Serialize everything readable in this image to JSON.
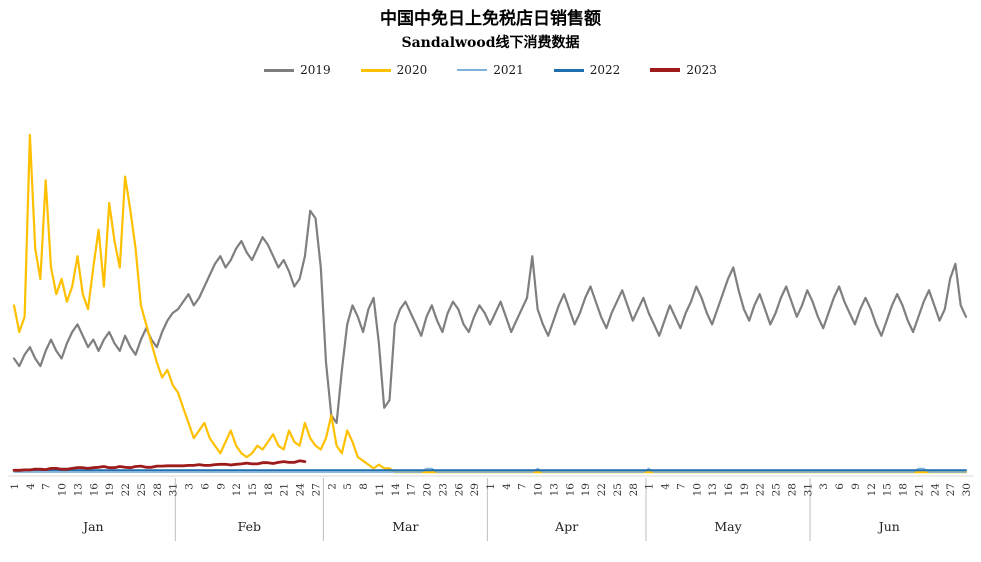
{
  "header": {
    "title": "中国中免日上免税店日销售额",
    "subtitle": "Sandalwood线下消费数据"
  },
  "legend": [
    {
      "label": "2019",
      "color": "#7F7F7F",
      "thickness": 3
    },
    {
      "label": "2020",
      "color": "#FFC000",
      "thickness": 3
    },
    {
      "label": "2021",
      "color": "#7EB1DC",
      "thickness": 2
    },
    {
      "label": "2022",
      "color": "#1F6FAF",
      "thickness": 3
    },
    {
      "label": "2023",
      "color": "#9E1B1B",
      "thickness": 4
    }
  ],
  "chart_data": {
    "type": "line",
    "title": "中国中免日上免税店日销售额",
    "subtitle": "Sandalwood线下消费数据",
    "x_unit": "day of year (Jan 1 = 1, Jun 30 = 181)",
    "y_axis_visible": false,
    "ylim": [
      0,
      100
    ],
    "grid": false,
    "legend_position": "top-center",
    "months": [
      {
        "label": "Jan",
        "start": 1,
        "end": 31
      },
      {
        "label": "Feb",
        "start": 32,
        "end": 59
      },
      {
        "label": "Mar",
        "start": 60,
        "end": 90
      },
      {
        "label": "Apr",
        "start": 91,
        "end": 120
      },
      {
        "label": "May",
        "start": 121,
        "end": 151
      },
      {
        "label": "Jun",
        "start": 152,
        "end": 181
      }
    ],
    "tick_step_days": 3,
    "tick_labels": [
      "1",
      "4",
      "7",
      "10",
      "13",
      "16",
      "19",
      "22",
      "25",
      "28",
      "31",
      "3",
      "6",
      "9",
      "12",
      "15",
      "18",
      "21",
      "24",
      "27",
      "2",
      "5",
      "8",
      "11",
      "14",
      "17",
      "20",
      "23",
      "26",
      "29",
      "1",
      "4",
      "7",
      "10",
      "13",
      "16",
      "19",
      "22",
      "25",
      "28",
      "1",
      "4",
      "7",
      "10",
      "13",
      "16",
      "19",
      "22",
      "25",
      "28",
      "31",
      "3",
      "6",
      "9",
      "12",
      "15",
      "18",
      "21",
      "24",
      "27",
      "30"
    ],
    "series": [
      {
        "name": "2019",
        "color": "#7F7F7F",
        "width": 2.2,
        "values": [
          31,
          29,
          32,
          34,
          31,
          29,
          33,
          36,
          33,
          31,
          35,
          38,
          40,
          37,
          34,
          36,
          33,
          36,
          38,
          35,
          33,
          37,
          34,
          32,
          36,
          39,
          36,
          34,
          38,
          41,
          43,
          44,
          46,
          48,
          45,
          47,
          50,
          53,
          56,
          58,
          55,
          57,
          60,
          62,
          59,
          57,
          60,
          63,
          61,
          58,
          55,
          57,
          54,
          50,
          52,
          58,
          70,
          68,
          55,
          30,
          16,
          14,
          28,
          40,
          45,
          42,
          38,
          44,
          47,
          35,
          18,
          20,
          40,
          44,
          46,
          43,
          40,
          37,
          42,
          45,
          41,
          38,
          43,
          46,
          44,
          40,
          38,
          42,
          45,
          43,
          40,
          43,
          46,
          42,
          38,
          41,
          44,
          47,
          58,
          44,
          40,
          37,
          41,
          45,
          48,
          44,
          40,
          43,
          47,
          50,
          46,
          42,
          39,
          43,
          46,
          49,
          45,
          41,
          44,
          47,
          43,
          40,
          37,
          41,
          45,
          42,
          39,
          43,
          46,
          50,
          47,
          43,
          40,
          44,
          48,
          52,
          55,
          49,
          44,
          41,
          45,
          48,
          44,
          40,
          43,
          47,
          50,
          46,
          42,
          45,
          49,
          46,
          42,
          39,
          43,
          47,
          50,
          46,
          43,
          40,
          44,
          47,
          44,
          40,
          37,
          41,
          45,
          48,
          45,
          41,
          38,
          42,
          46,
          49,
          45,
          41,
          44,
          52,
          56,
          45,
          42
        ]
      },
      {
        "name": "2020",
        "color": "#FFC000",
        "width": 2.2,
        "values": [
          45,
          38,
          42,
          90,
          60,
          52,
          78,
          55,
          48,
          52,
          46,
          50,
          58,
          48,
          44,
          55,
          65,
          50,
          72,
          62,
          55,
          79,
          70,
          60,
          45,
          40,
          35,
          30,
          26,
          28,
          24,
          22,
          18,
          14,
          10,
          12,
          14,
          10,
          8,
          6,
          9,
          12,
          8,
          6,
          5,
          6,
          8,
          7,
          9,
          11,
          8,
          7,
          12,
          9,
          8,
          14,
          10,
          8,
          7,
          10,
          16,
          8,
          6,
          12,
          9,
          5,
          4,
          3,
          2,
          3,
          2,
          2,
          1,
          1,
          1,
          1,
          1,
          1,
          1,
          1,
          1,
          1,
          1,
          1,
          1,
          1,
          1,
          1,
          1,
          1,
          1,
          1,
          1,
          1,
          1,
          1,
          1,
          1,
          1,
          1,
          1,
          1,
          1,
          1,
          1,
          1,
          1,
          1,
          1,
          1,
          1,
          1,
          1,
          1,
          1,
          1,
          1,
          1,
          1,
          1,
          1,
          1,
          1,
          1,
          1,
          1,
          1,
          1,
          1,
          1,
          1,
          1,
          1,
          1,
          1,
          1,
          1,
          1,
          1,
          1,
          1,
          1,
          1,
          1,
          1,
          1,
          1,
          1,
          1,
          1,
          1,
          1,
          1,
          1,
          1,
          1,
          1,
          1,
          1,
          1,
          1,
          1,
          1,
          1,
          1,
          1,
          1,
          1,
          1,
          1,
          1,
          1,
          1,
          1,
          1,
          1,
          1,
          1,
          1,
          1,
          1
        ]
      },
      {
        "name": "2021",
        "color": "#7EB1DC",
        "width": 1.4,
        "values": [
          1,
          1,
          1,
          1,
          1,
          1,
          1,
          1,
          1,
          1,
          1,
          1,
          1,
          1,
          1,
          1,
          1,
          1,
          1,
          1,
          1,
          1,
          1,
          1,
          1,
          1,
          1,
          1,
          1,
          1,
          1,
          1,
          1,
          1,
          1,
          1,
          1,
          1,
          1,
          1,
          1,
          1,
          1,
          1,
          1,
          1,
          1,
          1,
          1,
          1,
          1,
          1,
          1,
          1,
          1,
          1,
          1,
          1,
          1,
          1,
          1,
          1,
          1,
          1,
          1,
          1,
          1,
          1,
          1,
          1,
          1,
          1,
          1,
          1,
          1,
          1,
          1,
          1,
          2,
          2,
          1,
          1,
          1,
          1,
          1,
          1,
          1,
          1,
          1,
          1,
          1,
          1,
          1,
          1,
          1,
          1,
          1,
          1,
          1,
          2,
          1,
          1,
          1,
          1,
          1,
          1,
          1,
          1,
          1,
          1,
          1,
          1,
          1,
          1,
          1,
          1,
          1,
          1,
          1,
          1,
          2,
          1,
          1,
          1,
          1,
          1,
          1,
          1,
          1,
          1,
          1,
          1,
          1,
          1,
          1,
          1,
          1,
          1,
          1,
          1,
          1,
          1,
          1,
          1,
          1,
          1,
          1,
          1,
          1,
          1,
          1,
          1,
          1,
          1,
          1,
          1,
          1,
          1,
          1,
          1,
          1,
          1,
          1,
          1,
          1,
          1,
          1,
          1,
          1,
          1,
          1,
          2,
          2,
          1,
          1,
          1,
          1,
          1,
          1,
          1,
          1
        ]
      },
      {
        "name": "2022",
        "color": "#1F6FAF",
        "width": 2,
        "values": [
          1.5,
          1.5,
          1.5,
          1.5,
          1.5,
          1.5,
          1.5,
          1.5,
          1.5,
          1.5,
          1.5,
          1.5,
          1.5,
          1.5,
          1.5,
          1.5,
          1.5,
          1.5,
          1.5,
          1.5,
          1.5,
          1.5,
          1.5,
          1.5,
          1.5,
          1.5,
          1.5,
          1.5,
          1.5,
          1.5,
          1.5,
          1.5,
          1.5,
          1.5,
          1.5,
          1.5,
          1.5,
          1.5,
          1.5,
          1.5,
          1.5,
          1.5,
          1.5,
          1.5,
          1.5,
          1.5,
          1.5,
          1.5,
          1.5,
          1.5,
          1.5,
          1.5,
          1.5,
          1.5,
          1.5,
          1.5,
          1.5,
          1.5,
          1.5,
          1.5,
          1.5,
          1.5,
          1.5,
          1.5,
          1.5,
          1.5,
          1.5,
          1.5,
          1.5,
          1.5,
          1.5,
          1.5,
          1.5,
          1.5,
          1.5,
          1.5,
          1.5,
          1.5,
          1.5,
          1.5,
          1.5,
          1.5,
          1.5,
          1.5,
          1.5,
          1.5,
          1.5,
          1.5,
          1.5,
          1.5,
          1.5,
          1.5,
          1.5,
          1.5,
          1.5,
          1.5,
          1.5,
          1.5,
          1.5,
          1.5,
          1.5,
          1.5,
          1.5,
          1.5,
          1.5,
          1.5,
          1.5,
          1.5,
          1.5,
          1.5,
          1.5,
          1.5,
          1.5,
          1.5,
          1.5,
          1.5,
          1.5,
          1.5,
          1.5,
          1.5,
          1.5,
          1.5,
          1.5,
          1.5,
          1.5,
          1.5,
          1.5,
          1.5,
          1.5,
          1.5,
          1.5,
          1.5,
          1.5,
          1.5,
          1.5,
          1.5,
          1.5,
          1.5,
          1.5,
          1.5,
          1.5,
          1.5,
          1.5,
          1.5,
          1.5,
          1.5,
          1.5,
          1.5,
          1.5,
          1.5,
          1.5,
          1.5,
          1.5,
          1.5,
          1.5,
          1.5,
          1.5,
          1.5,
          1.5,
          1.5,
          1.5,
          1.5,
          1.5,
          1.5,
          1.5,
          1.5,
          1.5,
          1.5,
          1.5,
          1.5,
          1.5,
          1.5,
          1.5,
          1.5,
          1.5,
          1.5,
          1.5,
          1.5,
          1.5,
          1.5,
          1.5
        ]
      },
      {
        "name": "2023",
        "color": "#9E1B1B",
        "width": 2.8,
        "values": [
          1.5,
          1.5,
          1.6,
          1.6,
          1.8,
          1.8,
          1.7,
          2,
          2,
          1.8,
          1.8,
          2,
          2.2,
          2.2,
          2,
          2.2,
          2.3,
          2.5,
          2.2,
          2.2,
          2.5,
          2.3,
          2.2,
          2.5,
          2.6,
          2.3,
          2.3,
          2.6,
          2.6,
          2.7,
          2.7,
          2.7,
          2.7,
          2.8,
          2.8,
          3,
          2.8,
          2.8,
          3,
          3.1,
          3.1,
          2.9,
          3.1,
          3.2,
          3.4,
          3.2,
          3.2,
          3.5,
          3.5,
          3.3,
          3.6,
          3.8,
          3.6,
          3.6,
          4,
          3.8
        ]
      }
    ]
  }
}
